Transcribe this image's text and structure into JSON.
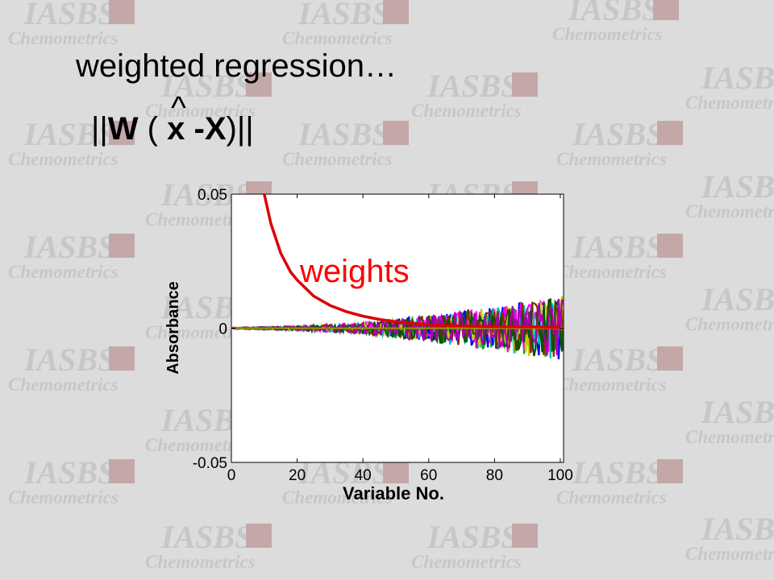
{
  "watermark": {
    "line1": "IASBS",
    "line2": "Chemometrics"
  },
  "slide": {
    "title": "weighted regression…"
  },
  "formula": {
    "bar_open": "||",
    "w": "W",
    "paren_open": "(",
    "hat": "^",
    "x_hat": "x",
    "minus": "-",
    "x": "X",
    "paren_close": ")",
    "bar_close": "||"
  },
  "chart_data": {
    "type": "line",
    "title": "",
    "xlabel": "Variable No.",
    "ylabel": "Absorbance",
    "xlim": [
      0,
      101
    ],
    "ylim": [
      -0.05,
      0.05
    ],
    "xticks": [
      0,
      20,
      40,
      60,
      80,
      100
    ],
    "xtick_labels": [
      "0",
      "20",
      "40",
      "60",
      "80",
      "100"
    ],
    "yticks": [
      0.05,
      0,
      -0.05
    ],
    "ytick_labels": [
      "0.05",
      "0",
      "-0.05"
    ],
    "grid": false,
    "annotation": {
      "text": "weights",
      "color": "#ff0000"
    },
    "weights_series": {
      "name": "weights",
      "color": "#dd0000",
      "x": [
        10,
        12,
        15,
        18,
        20,
        25,
        30,
        35,
        40,
        45,
        50,
        60,
        70,
        80,
        90,
        100
      ],
      "y": [
        0.05,
        0.039,
        0.028,
        0.021,
        0.018,
        0.012,
        0.0085,
        0.0062,
        0.0045,
        0.0033,
        0.0024,
        0.0013,
        0.0008,
        0.0006,
        0.0005,
        0.0004
      ]
    },
    "noise_series": {
      "colors": [
        "#00aa00",
        "#0000ff",
        "#ff00ff",
        "#00c0c0",
        "#cccc00",
        "#7a3000",
        "#005500",
        "#aa00aa"
      ],
      "count": 8,
      "amplitude_envelope": {
        "x": [
          0,
          20,
          40,
          60,
          80,
          100
        ],
        "y": [
          0.0002,
          0.0008,
          0.002,
          0.005,
          0.0085,
          0.012
        ]
      }
    },
    "baseline": {
      "color": "#999900",
      "y": 0
    }
  }
}
